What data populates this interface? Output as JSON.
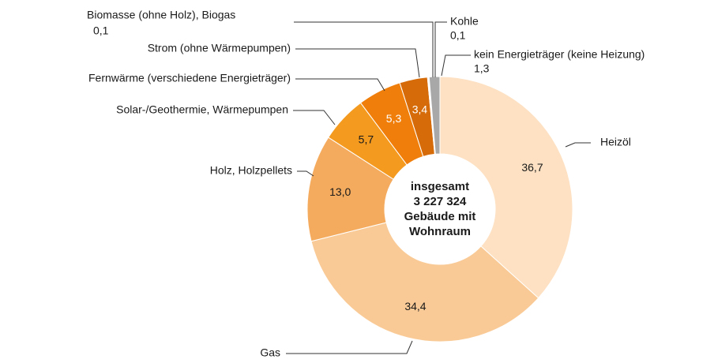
{
  "chart_data": {
    "type": "donut",
    "center_label": [
      "insgesamt",
      "3 227 324",
      "Gebäude mit",
      "Wohnraum"
    ],
    "categories": [
      "Heizöl",
      "Gas",
      "Holz, Holzpellets",
      "Solar-/Geothermie, Wärmepumpen",
      "Fernwärme (verschiedene Energieträger)",
      "Strom (ohne Wärmepumpen)",
      "Biomasse (ohne Holz), Biogas",
      "Kohle",
      "kein Energieträger (keine Heizung)"
    ],
    "values": [
      36.7,
      34.4,
      13.0,
      5.7,
      5.3,
      3.4,
      0.1,
      0.1,
      1.3
    ],
    "value_labels": [
      "36,7",
      "34,4",
      "13,0",
      "5,7",
      "5,3",
      "3,4",
      "0,1",
      "0,1",
      "1,3"
    ],
    "colors": [
      "#fde1c2",
      "#f9ca95",
      "#f5ab5e",
      "#f39a1f",
      "#ef7e0b",
      "#d66c09",
      "#c0560a",
      "#8a8a8a",
      "#a8a8a8"
    ]
  }
}
